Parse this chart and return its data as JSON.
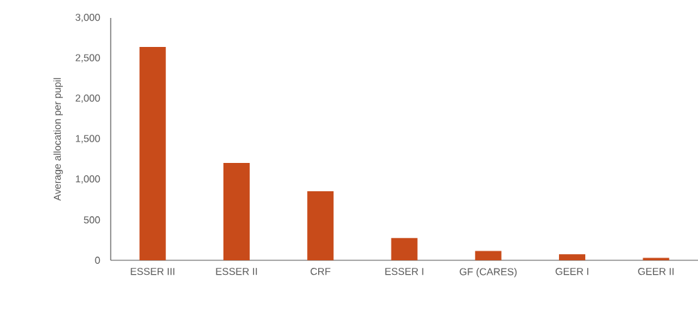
{
  "chart_data": {
    "type": "bar",
    "ylabel": "Average allocation per pupil",
    "categories": [
      "ESSER III",
      "ESSER II",
      "CRF",
      "ESSER I",
      "GF (CARES)",
      "GEER I",
      "GEER II"
    ],
    "values": [
      2640,
      1205,
      855,
      275,
      115,
      75,
      30
    ],
    "color": "#c84b1a",
    "ylim": [
      0,
      3000
    ],
    "yticks": [
      {
        "value": 0,
        "label": "0"
      },
      {
        "value": 500,
        "label": "500"
      },
      {
        "value": 1000,
        "label": "1,000"
      },
      {
        "value": 1500,
        "label": "1,500"
      },
      {
        "value": 2000,
        "label": "2,000"
      },
      {
        "value": 2500,
        "label": "2,500"
      },
      {
        "value": 3000,
        "label": "3,000"
      }
    ],
    "grid": false
  }
}
